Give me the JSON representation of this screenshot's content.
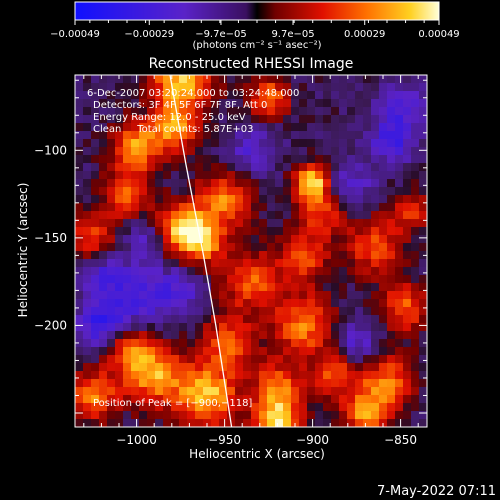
{
  "chart_data": {
    "type": "heatmap",
    "title": "Reconstructed RHESSI Image",
    "xlabel": "Heliocentric X (arcsec)",
    "ylabel": "Heliocentric Y (arcsec)",
    "xlim": [
      -1035,
      -835
    ],
    "ylim": [
      -258,
      -57
    ],
    "x_ticks": [
      {
        "value": -1000,
        "label": "−1000"
      },
      {
        "value": -950,
        "label": "−950"
      },
      {
        "value": -900,
        "label": "−900"
      },
      {
        "value": -850,
        "label": "−850"
      }
    ],
    "y_ticks": [
      {
        "value": -100,
        "label": "−100"
      },
      {
        "value": -150,
        "label": "−150"
      },
      {
        "value": -200,
        "label": "−200"
      }
    ],
    "colorbar": {
      "unit": "(photons cm⁻² s⁻¹ asec⁻²)",
      "range": [
        -0.00049,
        0.00049
      ],
      "tick_labels": [
        "−0.00049",
        "−0.00029",
        "−9.7e−05",
        "9.7e−05",
        "0.00029",
        "0.00049"
      ]
    },
    "annotations": [
      "6-Dec-2007 03:20:24.000 to 03:24:48.000",
      "Detectors: 3F 4F 5F 6F 7F 8F, Att 0",
      "Energy Range: 12.0 - 25.0 keV",
      "Clean     Total counts: 5.87E+03"
    ],
    "peak_label": "Position of Peak = [−900,−118]",
    "peak": {
      "x": -900,
      "y": -118
    },
    "limb_curve": [
      {
        "x": -981,
        "y": -57
      },
      {
        "x": -972,
        "y": -108
      },
      {
        "x": -962,
        "y": -160
      },
      {
        "x": -955,
        "y": -200
      },
      {
        "x": -946,
        "y": -258
      }
    ],
    "bright_regions": [
      {
        "x": -975,
        "y": -62,
        "r": 12,
        "v": 0.9
      },
      {
        "x": -1000,
        "y": -98,
        "r": 10,
        "v": 0.8
      },
      {
        "x": -978,
        "y": -88,
        "r": 9,
        "v": 0.7
      },
      {
        "x": -1005,
        "y": -125,
        "r": 9,
        "v": 0.65
      },
      {
        "x": -925,
        "y": -70,
        "r": 8,
        "v": 0.7
      },
      {
        "x": -900,
        "y": -118,
        "r": 7,
        "v": 1.0
      },
      {
        "x": -895,
        "y": -135,
        "r": 10,
        "v": 0.55
      },
      {
        "x": -950,
        "y": -128,
        "r": 11,
        "v": 0.7
      },
      {
        "x": -975,
        "y": -145,
        "r": 10,
        "v": 0.85
      },
      {
        "x": -962,
        "y": -152,
        "r": 9,
        "v": 0.75
      },
      {
        "x": -1025,
        "y": -150,
        "r": 10,
        "v": 0.55
      },
      {
        "x": -935,
        "y": -175,
        "r": 12,
        "v": 0.6
      },
      {
        "x": -905,
        "y": -162,
        "r": 10,
        "v": 0.55
      },
      {
        "x": -865,
        "y": -155,
        "r": 11,
        "v": 0.6
      },
      {
        "x": -845,
        "y": -135,
        "r": 8,
        "v": 0.5
      },
      {
        "x": -848,
        "y": -190,
        "r": 10,
        "v": 0.6
      },
      {
        "x": -905,
        "y": -200,
        "r": 12,
        "v": 0.7
      },
      {
        "x": -948,
        "y": -210,
        "r": 11,
        "v": 0.6
      },
      {
        "x": -1005,
        "y": -212,
        "r": 10,
        "v": 0.6
      },
      {
        "x": -990,
        "y": -228,
        "r": 12,
        "v": 0.8
      },
      {
        "x": -960,
        "y": -240,
        "r": 12,
        "v": 0.9
      },
      {
        "x": -1025,
        "y": -240,
        "r": 10,
        "v": 0.7
      },
      {
        "x": -920,
        "y": -235,
        "r": 10,
        "v": 0.65
      },
      {
        "x": -888,
        "y": -228,
        "r": 9,
        "v": 0.6
      },
      {
        "x": -920,
        "y": -255,
        "r": 9,
        "v": 0.95
      },
      {
        "x": -858,
        "y": -232,
        "r": 11,
        "v": 0.65
      },
      {
        "x": -870,
        "y": -250,
        "r": 9,
        "v": 0.75
      }
    ],
    "dark_regions": [
      {
        "x": -1020,
        "y": -200,
        "r": 10,
        "v": -0.6
      },
      {
        "x": -1000,
        "y": -185,
        "r": 14,
        "v": -0.45
      },
      {
        "x": -855,
        "y": -95,
        "r": 9,
        "v": -0.5
      },
      {
        "x": -880,
        "y": -120,
        "r": 10,
        "v": -0.4
      },
      {
        "x": -935,
        "y": -100,
        "r": 10,
        "v": -0.35
      },
      {
        "x": -1020,
        "y": -170,
        "r": 9,
        "v": -0.4
      },
      {
        "x": -875,
        "y": -210,
        "r": 9,
        "v": -0.4
      },
      {
        "x": -975,
        "y": -180,
        "r": 10,
        "v": -0.35
      },
      {
        "x": -995,
        "y": -150,
        "r": 8,
        "v": -0.35
      },
      {
        "x": -850,
        "y": -75,
        "r": 10,
        "v": -0.4
      }
    ]
  },
  "footer": {
    "timestamp": "7-May-2022 07:11"
  }
}
